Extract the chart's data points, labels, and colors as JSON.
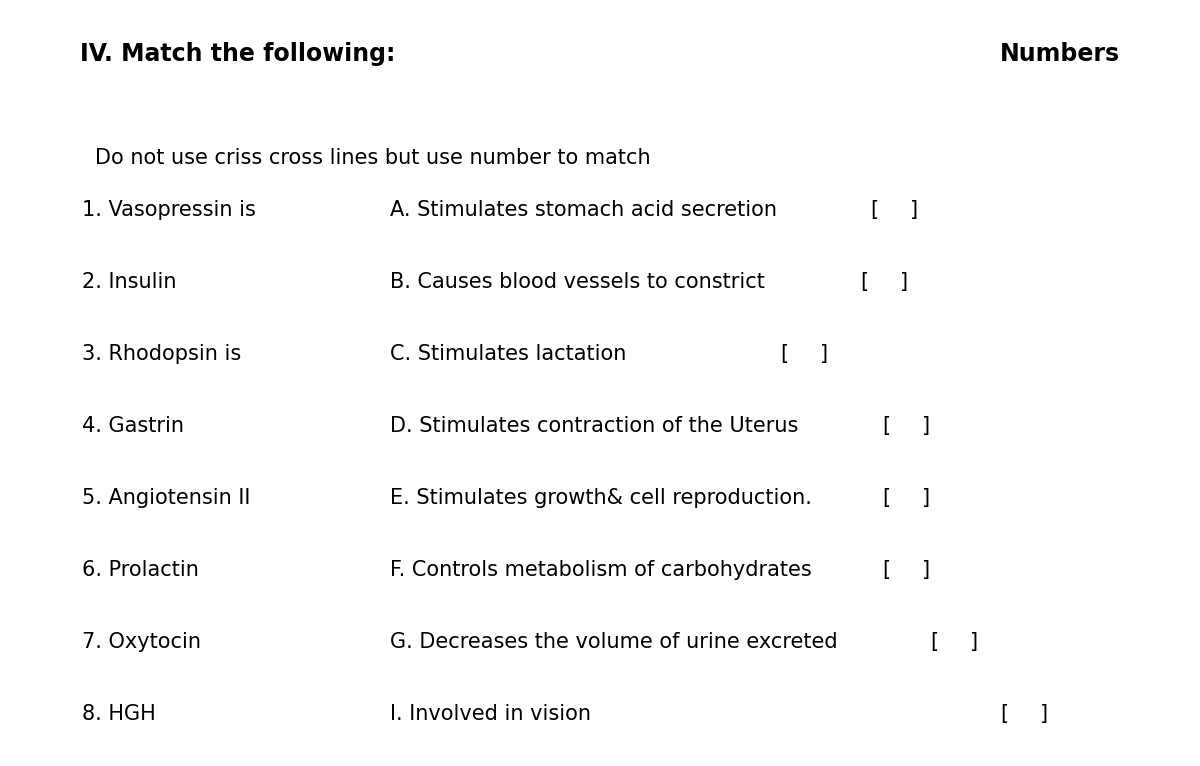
{
  "title_left": "IV. Match the following:",
  "title_right": "Numbers",
  "instruction": "Do not use criss cross lines but use number to match",
  "left_items": [
    "1. Vasopressin is",
    "2. Insulin",
    "3. Rhodopsin is",
    "4. Gastrin",
    "5. Angiotensin II",
    "6. Prolactin",
    "7. Oxytocin",
    "8. HGH"
  ],
  "right_items": [
    "A. Stimulates stomach acid secretion",
    "B. Causes blood vessels to constrict",
    "C. Stimulates lactation",
    "D. Stimulates contraction of the Uterus",
    "E. Stimulates growth& cell reproduction.",
    "F. Controls metabolism of carbohydrates",
    "G. Decreases the volume of urine excreted",
    "I. Involved in vision"
  ],
  "background_color": "#ffffff",
  "text_color": "#000000",
  "title_fontsize": 17,
  "body_fontsize": 15,
  "instruction_fontsize": 15
}
